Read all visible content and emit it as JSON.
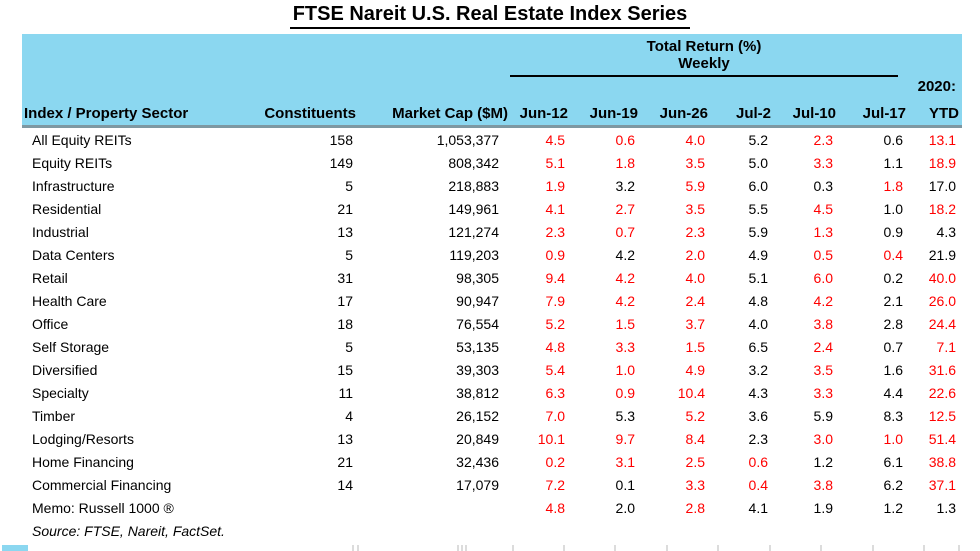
{
  "title": "FTSE Nareit U.S. Real Estate Index Series",
  "header": {
    "group_line1": "Total Return (%)",
    "group_line2": "Weekly",
    "year_label": "2020:",
    "columns": [
      "Index / Property Sector",
      "Constituents",
      "Market Cap ($M)",
      "Jun-12",
      "Jun-19",
      "Jun-26",
      "Jul-2",
      "Jul-10",
      "Jul-17",
      "YTD"
    ]
  },
  "colors": {
    "header_bg": "#8BD7F0",
    "header_border": "#7E98A2",
    "negative_value": "#FF0000",
    "text": "#000000"
  },
  "table": {
    "rows": [
      {
        "sector": "All Equity REITs",
        "constituents": "158",
        "market_cap": "1,053,377",
        "returns": [
          "4.5",
          "0.6",
          "4.0",
          "5.2",
          "2.3",
          "0.6",
          "13.1"
        ],
        "red": [
          1,
          1,
          1,
          0,
          1,
          0,
          1
        ]
      },
      {
        "sector": "Equity REITs",
        "constituents": "149",
        "market_cap": "808,342",
        "returns": [
          "5.1",
          "1.8",
          "3.5",
          "5.0",
          "3.3",
          "1.1",
          "18.9"
        ],
        "red": [
          1,
          1,
          1,
          0,
          1,
          0,
          1
        ]
      },
      {
        "sector": "Infrastructure",
        "constituents": "5",
        "market_cap": "218,883",
        "returns": [
          "1.9",
          "3.2",
          "5.9",
          "6.0",
          "0.3",
          "1.8",
          "17.0"
        ],
        "red": [
          1,
          0,
          1,
          0,
          0,
          1,
          0
        ]
      },
      {
        "sector": "Residential",
        "constituents": "21",
        "market_cap": "149,961",
        "returns": [
          "4.1",
          "2.7",
          "3.5",
          "5.5",
          "4.5",
          "1.0",
          "18.2"
        ],
        "red": [
          1,
          1,
          1,
          0,
          1,
          0,
          1
        ]
      },
      {
        "sector": "Industrial",
        "constituents": "13",
        "market_cap": "121,274",
        "returns": [
          "2.3",
          "0.7",
          "2.3",
          "5.9",
          "1.3",
          "0.9",
          "4.3"
        ],
        "red": [
          1,
          1,
          1,
          0,
          1,
          0,
          0
        ]
      },
      {
        "sector": "Data Centers",
        "constituents": "5",
        "market_cap": "119,203",
        "returns": [
          "0.9",
          "4.2",
          "2.0",
          "4.9",
          "0.5",
          "0.4",
          "21.9"
        ],
        "red": [
          1,
          0,
          1,
          0,
          1,
          1,
          0
        ]
      },
      {
        "sector": "Retail",
        "constituents": "31",
        "market_cap": "98,305",
        "returns": [
          "9.4",
          "4.2",
          "4.0",
          "5.1",
          "6.0",
          "0.2",
          "40.0"
        ],
        "red": [
          1,
          1,
          1,
          0,
          1,
          0,
          1
        ]
      },
      {
        "sector": "Health Care",
        "constituents": "17",
        "market_cap": "90,947",
        "returns": [
          "7.9",
          "4.2",
          "2.4",
          "4.8",
          "4.2",
          "2.1",
          "26.0"
        ],
        "red": [
          1,
          1,
          1,
          0,
          1,
          0,
          1
        ]
      },
      {
        "sector": "Office",
        "constituents": "18",
        "market_cap": "76,554",
        "returns": [
          "5.2",
          "1.5",
          "3.7",
          "4.0",
          "3.8",
          "2.8",
          "24.4"
        ],
        "red": [
          1,
          1,
          1,
          0,
          1,
          0,
          1
        ]
      },
      {
        "sector": "Self Storage",
        "constituents": "5",
        "market_cap": "53,135",
        "returns": [
          "4.8",
          "3.3",
          "1.5",
          "6.5",
          "2.4",
          "0.7",
          "7.1"
        ],
        "red": [
          1,
          1,
          1,
          0,
          1,
          0,
          1
        ]
      },
      {
        "sector": "Diversified",
        "constituents": "15",
        "market_cap": "39,303",
        "returns": [
          "5.4",
          "1.0",
          "4.9",
          "3.2",
          "3.5",
          "1.6",
          "31.6"
        ],
        "red": [
          1,
          1,
          1,
          0,
          1,
          0,
          1
        ]
      },
      {
        "sector": "Specialty",
        "constituents": "11",
        "market_cap": "38,812",
        "returns": [
          "6.3",
          "0.9",
          "10.4",
          "4.3",
          "3.3",
          "4.4",
          "22.6"
        ],
        "red": [
          1,
          1,
          1,
          0,
          1,
          0,
          1
        ]
      },
      {
        "sector": "Timber",
        "constituents": "4",
        "market_cap": "26,152",
        "returns": [
          "7.0",
          "5.3",
          "5.2",
          "3.6",
          "5.9",
          "8.3",
          "12.5"
        ],
        "red": [
          1,
          0,
          1,
          0,
          0,
          0,
          1
        ]
      },
      {
        "sector": "Lodging/Resorts",
        "constituents": "13",
        "market_cap": "20,849",
        "returns": [
          "10.1",
          "9.7",
          "8.4",
          "2.3",
          "3.0",
          "1.0",
          "51.4"
        ],
        "red": [
          1,
          1,
          1,
          0,
          1,
          1,
          1
        ]
      },
      {
        "sector": "Home Financing",
        "constituents": "21",
        "market_cap": "32,436",
        "returns": [
          "0.2",
          "3.1",
          "2.5",
          "0.6",
          "1.2",
          "6.1",
          "38.8"
        ],
        "red": [
          1,
          1,
          1,
          1,
          0,
          0,
          1
        ]
      },
      {
        "sector": "Commercial Financing",
        "constituents": "14",
        "market_cap": "17,079",
        "returns": [
          "7.2",
          "0.1",
          "3.3",
          "0.4",
          "3.8",
          "6.2",
          "37.1"
        ],
        "red": [
          1,
          0,
          1,
          1,
          1,
          0,
          1
        ]
      },
      {
        "sector": "Memo: Russell 1000 ®",
        "constituents": "",
        "market_cap": "",
        "returns": [
          "4.8",
          "2.0",
          "2.8",
          "4.1",
          "1.9",
          "1.2",
          "1.3"
        ],
        "red": [
          1,
          0,
          1,
          0,
          0,
          0,
          0
        ]
      }
    ],
    "source": "Source: FTSE, Nareit, FactSet."
  }
}
